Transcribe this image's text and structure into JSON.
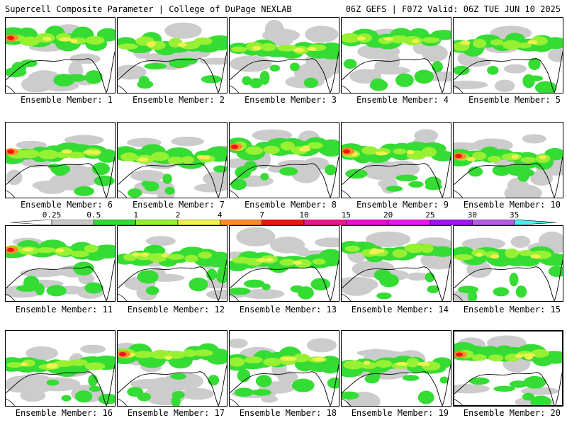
{
  "header": {
    "left": "Supercell Composite Parameter | College of DuPage NEXLAB",
    "right": "06Z GEFS | F072 Valid: 06Z TUE JUN 10 2025"
  },
  "legend": {
    "ticks": [
      "0.25",
      "0.5",
      "1",
      "2",
      "4",
      "7",
      "10",
      "15",
      "20",
      "25",
      "30",
      "35"
    ],
    "colors": [
      "#c8c8c8",
      "#32dc32",
      "#96f032",
      "#f0f050",
      "#ff8c28",
      "#f01414",
      "#f0148c",
      "#f00ad2",
      "#f014f0",
      "#a014f0",
      "#b45ae6",
      "#46f0f0"
    ]
  },
  "panel_label_prefix": "Ensemble Member:",
  "panels": [
    {
      "label": "Ensemble Member: 1"
    },
    {
      "label": "Ensemble Member: 2"
    },
    {
      "label": "Ensemble Member: 3"
    },
    {
      "label": "Ensemble Member: 4"
    },
    {
      "label": "Ensemble Member: 5"
    },
    {
      "label": "Ensemble Member: 6"
    },
    {
      "label": "Ensemble Member: 7"
    },
    {
      "label": "Ensemble Member: 8"
    },
    {
      "label": "Ensemble Member: 9"
    },
    {
      "label": "Ensemble Member: 10"
    },
    {
      "label": "Ensemble Member: 11"
    },
    {
      "label": "Ensemble Member: 12"
    },
    {
      "label": "Ensemble Member: 13"
    },
    {
      "label": "Ensemble Member: 14"
    },
    {
      "label": "Ensemble Member: 15"
    },
    {
      "label": "Ensemble Member: 16"
    },
    {
      "label": "Ensemble Member: 17"
    },
    {
      "label": "Ensemble Member: 18"
    },
    {
      "label": "Ensemble Member: 19"
    },
    {
      "label": "Ensemble Member: 20"
    }
  ]
}
